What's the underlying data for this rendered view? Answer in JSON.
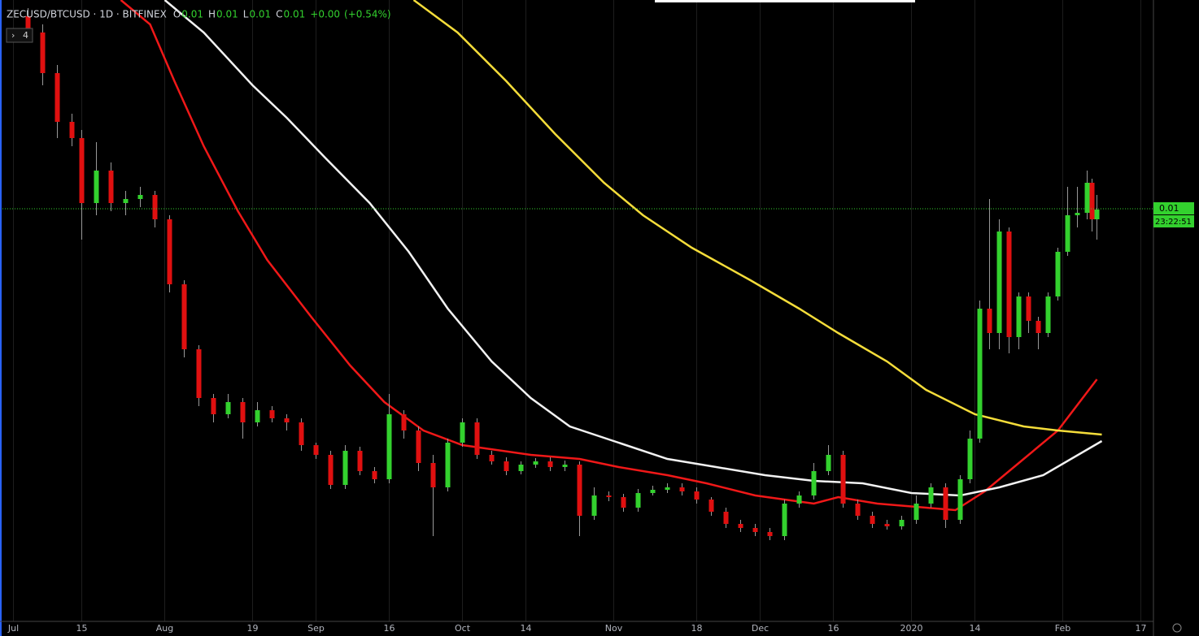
{
  "chart_data": {
    "type": "candlestick",
    "title": "ZECUSD/BTCUSD · 1D · BITFINEX",
    "ohlc": [
      {
        "label": "O",
        "value": 0.01
      },
      {
        "label": "H",
        "value": 0.01
      },
      {
        "label": "L",
        "value": 0.01
      },
      {
        "label": "C",
        "value": 0.01
      }
    ],
    "change": {
      "value": 0,
      "label": "+0.00"
    },
    "change_pct": {
      "value": 0.54,
      "label": "(+0.54%)"
    },
    "indicators": 4,
    "up_color": "#33d12e",
    "down_color": "#e01010",
    "xlim": [
      -2.75,
      233.58
    ],
    "ylim": [
      0.00245,
      0.0101
    ],
    "xticks": [
      {
        "value": 0,
        "label": "Jul"
      },
      {
        "value": 14,
        "label": "15"
      },
      {
        "value": 31,
        "label": "Aug"
      },
      {
        "value": 49,
        "label": "19"
      },
      {
        "value": 62,
        "label": "Sep"
      },
      {
        "value": 77,
        "label": "16"
      },
      {
        "value": 92,
        "label": "Oct"
      },
      {
        "value": 105,
        "label": "14"
      },
      {
        "value": 123,
        "label": "Nov"
      },
      {
        "value": 140,
        "label": "18"
      },
      {
        "value": 153,
        "label": "Dec"
      },
      {
        "value": 168,
        "label": "16"
      },
      {
        "value": 184,
        "label": "2020"
      },
      {
        "value": 197,
        "label": "14"
      },
      {
        "value": 215,
        "label": "Feb"
      },
      {
        "value": 231,
        "label": "17"
      }
    ],
    "grid": true,
    "candles": {
      "x": [
        3,
        6,
        9,
        12,
        14,
        17,
        20,
        23,
        26,
        29,
        32,
        35,
        38,
        41,
        44,
        47,
        50,
        53,
        56,
        59,
        62,
        65,
        68,
        71,
        74,
        77,
        80,
        83,
        86,
        89,
        92,
        95,
        98,
        101,
        104,
        107,
        110,
        113,
        116,
        119,
        122,
        125,
        128,
        131,
        134,
        137,
        140,
        143,
        146,
        149,
        152,
        155,
        158,
        161,
        164,
        167,
        170,
        173,
        176,
        179,
        182,
        185,
        188,
        191,
        194,
        196,
        198,
        200,
        202,
        204,
        206,
        208,
        210,
        212,
        214,
        216,
        218,
        220,
        221,
        222
      ],
      "open": [
        0.0099,
        0.0097,
        0.0092,
        0.0086,
        0.0084,
        0.0076,
        0.008,
        0.0076,
        0.00765,
        0.0077,
        0.0074,
        0.0066,
        0.0058,
        0.0052,
        0.005,
        0.00515,
        0.0049,
        0.00505,
        0.00495,
        0.0049,
        0.00462,
        0.0045,
        0.00413,
        0.00455,
        0.0043,
        0.0042,
        0.005,
        0.0048,
        0.0044,
        0.0041,
        0.00465,
        0.0049,
        0.0045,
        0.00442,
        0.0043,
        0.00438,
        0.00442,
        0.00435,
        0.00438,
        0.00375,
        0.004,
        0.00398,
        0.00385,
        0.00403,
        0.00407,
        0.0041,
        0.00405,
        0.00395,
        0.0038,
        0.00365,
        0.0036,
        0.00355,
        0.0035,
        0.0039,
        0.004,
        0.0043,
        0.0045,
        0.0039,
        0.00375,
        0.00365,
        0.00362,
        0.0037,
        0.0039,
        0.0041,
        0.0037,
        0.0042,
        0.0047,
        0.0063,
        0.006,
        0.00725,
        0.00595,
        0.00645,
        0.00615,
        0.006,
        0.00645,
        0.007,
        0.00745,
        0.00748,
        0.00785,
        0.0074
      ],
      "high": [
        0.01,
        0.0098,
        0.0093,
        0.0087,
        0.0085,
        0.00835,
        0.0081,
        0.00775,
        0.0078,
        0.00775,
        0.00745,
        0.00665,
        0.00585,
        0.00525,
        0.00525,
        0.0052,
        0.00515,
        0.0051,
        0.005,
        0.00495,
        0.00465,
        0.00455,
        0.00462,
        0.0046,
        0.00435,
        0.00525,
        0.00505,
        0.00485,
        0.0045,
        0.0047,
        0.00495,
        0.00495,
        0.00455,
        0.00447,
        0.00442,
        0.00446,
        0.00447,
        0.00443,
        0.00442,
        0.0041,
        0.00405,
        0.00402,
        0.00408,
        0.00412,
        0.00415,
        0.00415,
        0.0041,
        0.00398,
        0.00385,
        0.0037,
        0.00365,
        0.0036,
        0.00395,
        0.00405,
        0.0044,
        0.00462,
        0.00455,
        0.00395,
        0.0038,
        0.0037,
        0.00375,
        0.004,
        0.00415,
        0.00415,
        0.00425,
        0.0048,
        0.0064,
        0.00765,
        0.0074,
        0.0073,
        0.0065,
        0.0065,
        0.0062,
        0.0065,
        0.00705,
        0.0078,
        0.0078,
        0.008,
        0.0079,
        0.0077
      ],
      "low": [
        0.0096,
        0.00905,
        0.0084,
        0.0083,
        0.00715,
        0.00745,
        0.0075,
        0.00745,
        0.00755,
        0.0073,
        0.0065,
        0.0057,
        0.0051,
        0.0049,
        0.00495,
        0.0047,
        0.00485,
        0.0049,
        0.0048,
        0.00455,
        0.00445,
        0.00408,
        0.00408,
        0.00425,
        0.00415,
        0.00415,
        0.0047,
        0.0043,
        0.0035,
        0.00405,
        0.0046,
        0.00445,
        0.00438,
        0.00425,
        0.00426,
        0.00434,
        0.0043,
        0.0043,
        0.0035,
        0.0037,
        0.00393,
        0.0038,
        0.0038,
        0.004,
        0.00403,
        0.004,
        0.0039,
        0.00375,
        0.0036,
        0.00355,
        0.0035,
        0.00345,
        0.00345,
        0.00385,
        0.00395,
        0.00425,
        0.00385,
        0.0037,
        0.0036,
        0.00358,
        0.00358,
        0.00365,
        0.00385,
        0.0036,
        0.00365,
        0.00415,
        0.00465,
        0.0058,
        0.0058,
        0.00575,
        0.0058,
        0.006,
        0.0058,
        0.00595,
        0.0064,
        0.00695,
        0.0073,
        0.0074,
        0.00725,
        0.00715
      ],
      "close": [
        0.0097,
        0.0092,
        0.0086,
        0.0084,
        0.0076,
        0.008,
        0.0076,
        0.00765,
        0.0077,
        0.0074,
        0.0066,
        0.0058,
        0.0052,
        0.005,
        0.00515,
        0.0049,
        0.00505,
        0.00495,
        0.0049,
        0.00462,
        0.0045,
        0.00413,
        0.00455,
        0.0043,
        0.0042,
        0.005,
        0.0048,
        0.0044,
        0.0041,
        0.00465,
        0.0049,
        0.0045,
        0.00442,
        0.0043,
        0.00438,
        0.00442,
        0.00435,
        0.00438,
        0.00375,
        0.004,
        0.00398,
        0.00385,
        0.00403,
        0.00407,
        0.0041,
        0.00405,
        0.00395,
        0.0038,
        0.00365,
        0.0036,
        0.00355,
        0.0035,
        0.0039,
        0.004,
        0.0043,
        0.0045,
        0.0039,
        0.00375,
        0.00365,
        0.00362,
        0.0037,
        0.0039,
        0.0041,
        0.0037,
        0.0042,
        0.0047,
        0.0063,
        0.006,
        0.00725,
        0.00595,
        0.00645,
        0.00615,
        0.006,
        0.00645,
        0.007,
        0.00745,
        0.00748,
        0.00785,
        0.0074,
        0.00752
      ]
    },
    "series": [
      {
        "color": "#f01818",
        "x": [
          22,
          28,
          33,
          39,
          46,
          52,
          61,
          69,
          76,
          84,
          92,
          106,
          116,
          124,
          134,
          142,
          152,
          164,
          169,
          177,
          187,
          193,
          199,
          207,
          214,
          222
        ],
        "values": [
          0.0101,
          0.0098,
          0.0091,
          0.0083,
          0.0075,
          0.0069,
          0.0062,
          0.0056,
          0.00515,
          0.0048,
          0.00462,
          0.0045,
          0.00445,
          0.00435,
          0.00425,
          0.00415,
          0.004,
          0.0039,
          0.00398,
          0.0039,
          0.00385,
          0.00382,
          0.00405,
          0.00445,
          0.0048,
          0.00543
        ]
      },
      {
        "color": "#f2f2f2",
        "x": [
          31,
          39,
          49,
          56,
          64,
          73,
          81,
          89,
          98,
          106,
          114,
          124,
          134,
          144,
          154,
          164,
          174,
          184,
          194,
          202,
          211,
          223
        ],
        "values": [
          0.0101,
          0.0097,
          0.00905,
          0.00865,
          0.00815,
          0.0076,
          0.007,
          0.0063,
          0.00565,
          0.0052,
          0.00485,
          0.00465,
          0.00445,
          0.00435,
          0.00425,
          0.00418,
          0.00415,
          0.00403,
          0.004,
          0.0041,
          0.00425,
          0.00467
        ]
      },
      {
        "color": "#f5dd3a",
        "x": [
          82,
          91,
          101,
          111,
          121,
          129,
          139,
          151,
          161,
          169,
          179,
          187,
          197,
          207,
          214,
          223
        ],
        "values": [
          0.0101,
          0.0097,
          0.0091,
          0.00845,
          0.00785,
          0.00745,
          0.00705,
          0.00665,
          0.0063,
          0.006,
          0.00565,
          0.0053,
          0.005,
          0.00485,
          0.0048,
          0.00475
        ]
      }
    ],
    "last_price": {
      "value": 0.00753,
      "label": "0.01"
    },
    "countdown": "23:22:51"
  }
}
